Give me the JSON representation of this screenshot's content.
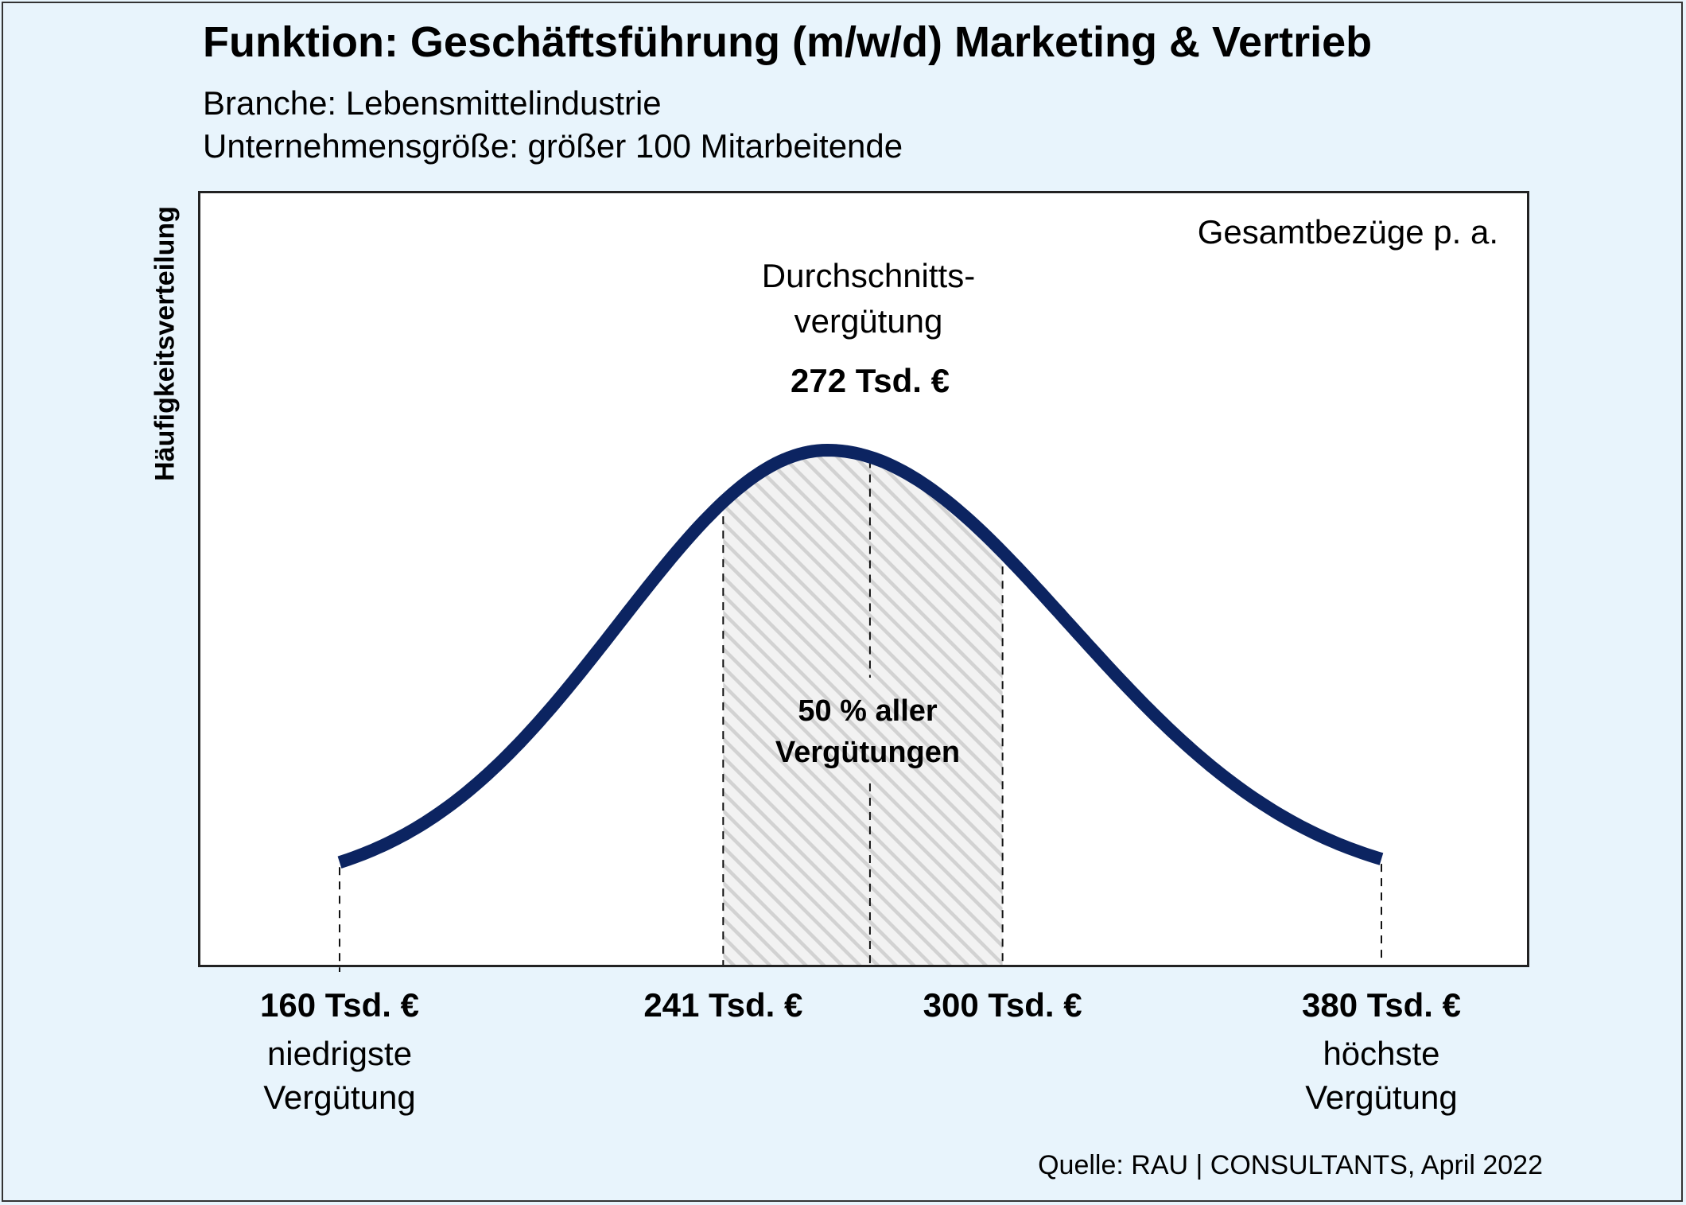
{
  "chart_data": {
    "type": "area",
    "title": "Funktion: Geschäftsführung (m/w/d) Marketing & Vertrieb",
    "subtitle_lines": [
      "Branche: Lebensmittelindustrie",
      "Unternehmensgröße: größer 100 Mitarbeitende"
    ],
    "ylabel": "Häufigkeitsverteilung",
    "corner_label": "Gesamtbezüge p. a.",
    "average": {
      "label_line1": "Durchschnitts-",
      "label_line2": "vergütung",
      "value": 272,
      "value_label": "272 Tsd. €"
    },
    "interquartile": {
      "from": 241,
      "to": 300,
      "label_line1": "50 % aller",
      "label_line2": "Vergütungen"
    },
    "peak": 263,
    "x_ticks": [
      {
        "value": 160,
        "label": "160 Tsd. €",
        "desc_line1": "niedrigste",
        "desc_line2": "Vergütung"
      },
      {
        "value": 241,
        "label": "241 Tsd. €",
        "desc_line1": "",
        "desc_line2": ""
      },
      {
        "value": 300,
        "label": "300 Tsd. €",
        "desc_line1": "",
        "desc_line2": ""
      },
      {
        "value": 380,
        "label": "380 Tsd. €",
        "desc_line1": "höchste",
        "desc_line2": "Vergütung"
      }
    ],
    "grid": false,
    "legend": "none"
  },
  "colors": {
    "curve": "#0c2461",
    "background": "#e8f4fc",
    "hatch": "#d2d2d2"
  },
  "source": "Quelle: RAU | CONSULTANTS, April 2022"
}
